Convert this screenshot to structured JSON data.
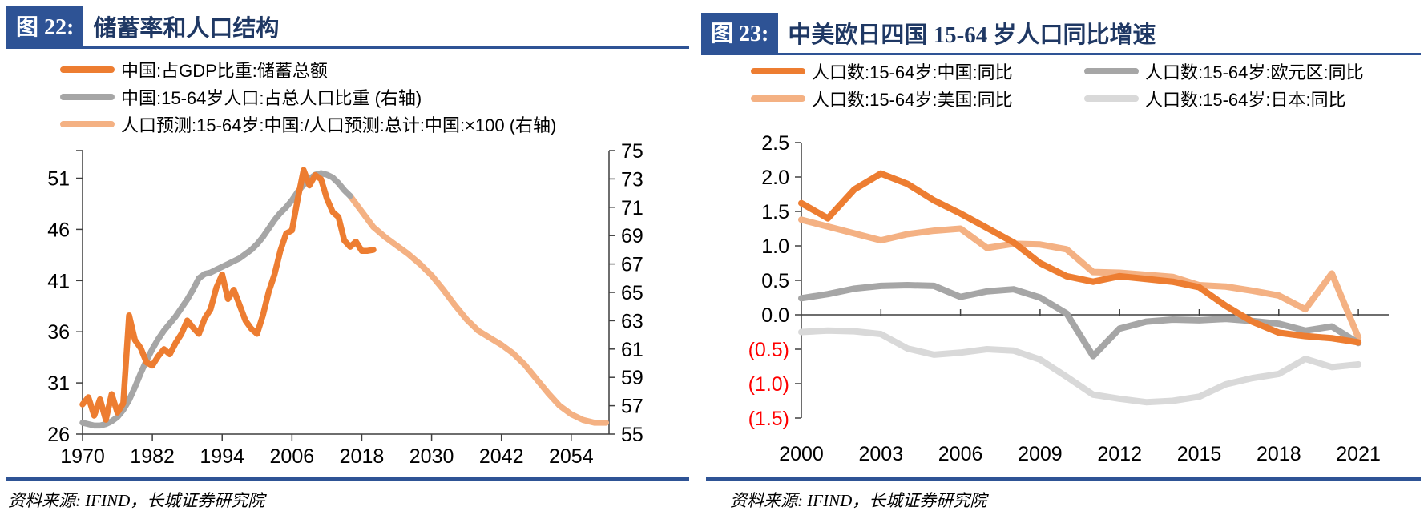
{
  "colors": {
    "accent_blue": "#2E5395",
    "title_text": "#1F3864",
    "orange": "#ED7D31",
    "light_orange": "#F4B183",
    "gray": "#A6A6A6",
    "light_gray": "#D9D9D9",
    "negative_red": "#FF0000",
    "axis": "#3F3F3F"
  },
  "figures": [
    {
      "badge": "图 22:",
      "title": "储蓄率和人口结构",
      "source": "资料来源: IFIND，长城证券研究院",
      "legend": [
        {
          "label": "中国:占GDP比重:储蓄总额",
          "color": "#ED7D31"
        },
        {
          "label": "中国:15-64岁人口:占总人口比重 (右轴)",
          "color": "#A6A6A6"
        },
        {
          "label": "人口预测:15-64岁:中国:/人口预测:总计:中国:×100 (右轴)",
          "color": "#F4B183"
        }
      ],
      "chart_data": {
        "type": "line",
        "title": "储蓄率和人口结构",
        "x_ticks": [
          1970,
          1982,
          1994,
          2006,
          2018,
          2030,
          2042,
          2054
        ],
        "x_range": [
          1970,
          2060.5
        ],
        "y_left": {
          "ticks": [
            26,
            31,
            36,
            41,
            46,
            51
          ],
          "range": [
            26,
            53.7
          ]
        },
        "y_right": {
          "ticks": [
            55,
            57,
            59,
            61,
            63,
            65,
            67,
            69,
            71,
            73,
            75
          ],
          "range": [
            55,
            75
          ]
        },
        "series": [
          {
            "name": "中国:占GDP比重:储蓄总额",
            "axis": "left",
            "color": "#ED7D31",
            "x_start": 1970,
            "x_step": 1,
            "values": [
              28.9,
              29.6,
              27.8,
              29.4,
              27.4,
              29.9,
              28.1,
              29.0,
              37.6,
              35.2,
              34.4,
              33.0,
              32.7,
              33.6,
              34.3,
              33.8,
              34.9,
              35.8,
              37.1,
              36.4,
              35.8,
              37.3,
              38.2,
              40.3,
              41.6,
              39.2,
              40.1,
              38.6,
              37.1,
              36.3,
              35.8,
              37.6,
              39.9,
              41.6,
              43.9,
              45.6,
              45.9,
              49.0,
              51.8,
              50.3,
              51.3,
              50.9,
              49.0,
              47.7,
              47.2,
              44.9,
              44.3,
              44.8,
              43.9,
              43.9,
              44.0
            ]
          },
          {
            "name": "中国:15-64岁人口:占总人口比重 (右轴)",
            "axis": "right",
            "color": "#A6A6A6",
            "x_start": 1970,
            "x_step": 1,
            "values": [
              55.8,
              55.7,
              55.6,
              55.6,
              55.7,
              55.9,
              56.2,
              56.7,
              57.4,
              58.3,
              59.3,
              60.2,
              61.0,
              61.7,
              62.3,
              62.8,
              63.3,
              63.9,
              64.5,
              65.2,
              66.0,
              66.3,
              66.4,
              66.6,
              66.8,
              67.0,
              67.2,
              67.4,
              67.7,
              68.0,
              68.4,
              68.9,
              69.5,
              70.1,
              70.6,
              71.0,
              71.5,
              72.1,
              72.6,
              73.0,
              73.3,
              73.4,
              73.3,
              73.1,
              72.7,
              72.2,
              71.8
            ]
          },
          {
            "name": "人口预测:15-64岁:中国:/人口预测:总计:中国:×100 (右轴)",
            "axis": "right",
            "color": "#F4B183",
            "x_start": 2016,
            "x_step": 2,
            "values": [
              71.8,
              70.7,
              69.6,
              68.9,
              68.3,
              67.7,
              67.0,
              66.2,
              65.2,
              64.1,
              63.1,
              62.3,
              61.8,
              61.3,
              60.7,
              59.9,
              58.9,
              57.9,
              57.0,
              56.4,
              56.0,
              55.8,
              55.8
            ]
          }
        ]
      }
    },
    {
      "badge": "图 23:",
      "title": "中美欧日四国 15-64 岁人口同比增速",
      "source": "资料来源: IFIND，长城证券研究院",
      "legend": [
        {
          "label": "人口数:15-64岁:中国:同比",
          "color": "#ED7D31"
        },
        {
          "label": "人口数:15-64岁:欧元区:同比",
          "color": "#A6A6A6"
        },
        {
          "label": "人口数:15-64岁:美国:同比",
          "color": "#F4B183"
        },
        {
          "label": "人口数:15-64岁:日本:同比",
          "color": "#D9D9D9"
        }
      ],
      "chart_data": {
        "type": "line",
        "title": "中美欧日四国 15-64 岁人口同比增速",
        "x_ticks": [
          2000,
          2003,
          2006,
          2009,
          2012,
          2015,
          2018,
          2021
        ],
        "x_range": [
          2000,
          2022.2
        ],
        "y_axis": {
          "ticks": [
            2.5,
            2.0,
            1.5,
            1.0,
            0.5,
            0.0,
            -0.5,
            -1.0,
            -1.5
          ],
          "range": [
            -1.5,
            2.5
          ],
          "negative_style": "red-parentheses"
        },
        "x_start": 2000,
        "x_step": 1,
        "series": [
          {
            "name": "人口数:15-64岁:中国:同比",
            "color": "#ED7D31",
            "values": [
              1.62,
              1.4,
              1.82,
              2.05,
              1.9,
              1.66,
              1.47,
              1.26,
              1.05,
              0.75,
              0.56,
              0.48,
              0.56,
              0.52,
              0.48,
              0.4,
              0.13,
              -0.1,
              -0.26,
              -0.31,
              -0.34,
              -0.4
            ]
          },
          {
            "name": "人口数:15-64岁:欧元区:同比",
            "color": "#A6A6A6",
            "values": [
              0.24,
              0.3,
              0.38,
              0.42,
              0.43,
              0.42,
              0.26,
              0.34,
              0.37,
              0.25,
              0.02,
              -0.6,
              -0.2,
              -0.1,
              -0.07,
              -0.08,
              -0.06,
              -0.09,
              -0.13,
              -0.23,
              -0.17,
              -0.41
            ]
          },
          {
            "name": "人口数:15-64岁:美国:同比",
            "color": "#F4B183",
            "values": [
              1.38,
              1.28,
              1.18,
              1.08,
              1.17,
              1.22,
              1.25,
              0.97,
              1.03,
              1.02,
              0.95,
              0.62,
              0.61,
              0.58,
              0.55,
              0.43,
              0.41,
              0.35,
              0.28,
              0.08,
              0.6,
              -0.33
            ]
          },
          {
            "name": "人口数:15-64岁:日本:同比",
            "color": "#D9D9D9",
            "values": [
              -0.25,
              -0.23,
              -0.24,
              -0.28,
              -0.49,
              -0.58,
              -0.55,
              -0.5,
              -0.52,
              -0.65,
              -0.9,
              -1.16,
              -1.22,
              -1.27,
              -1.25,
              -1.19,
              -1.01,
              -0.92,
              -0.86,
              -0.64,
              -0.76,
              -0.72
            ]
          }
        ]
      }
    }
  ]
}
